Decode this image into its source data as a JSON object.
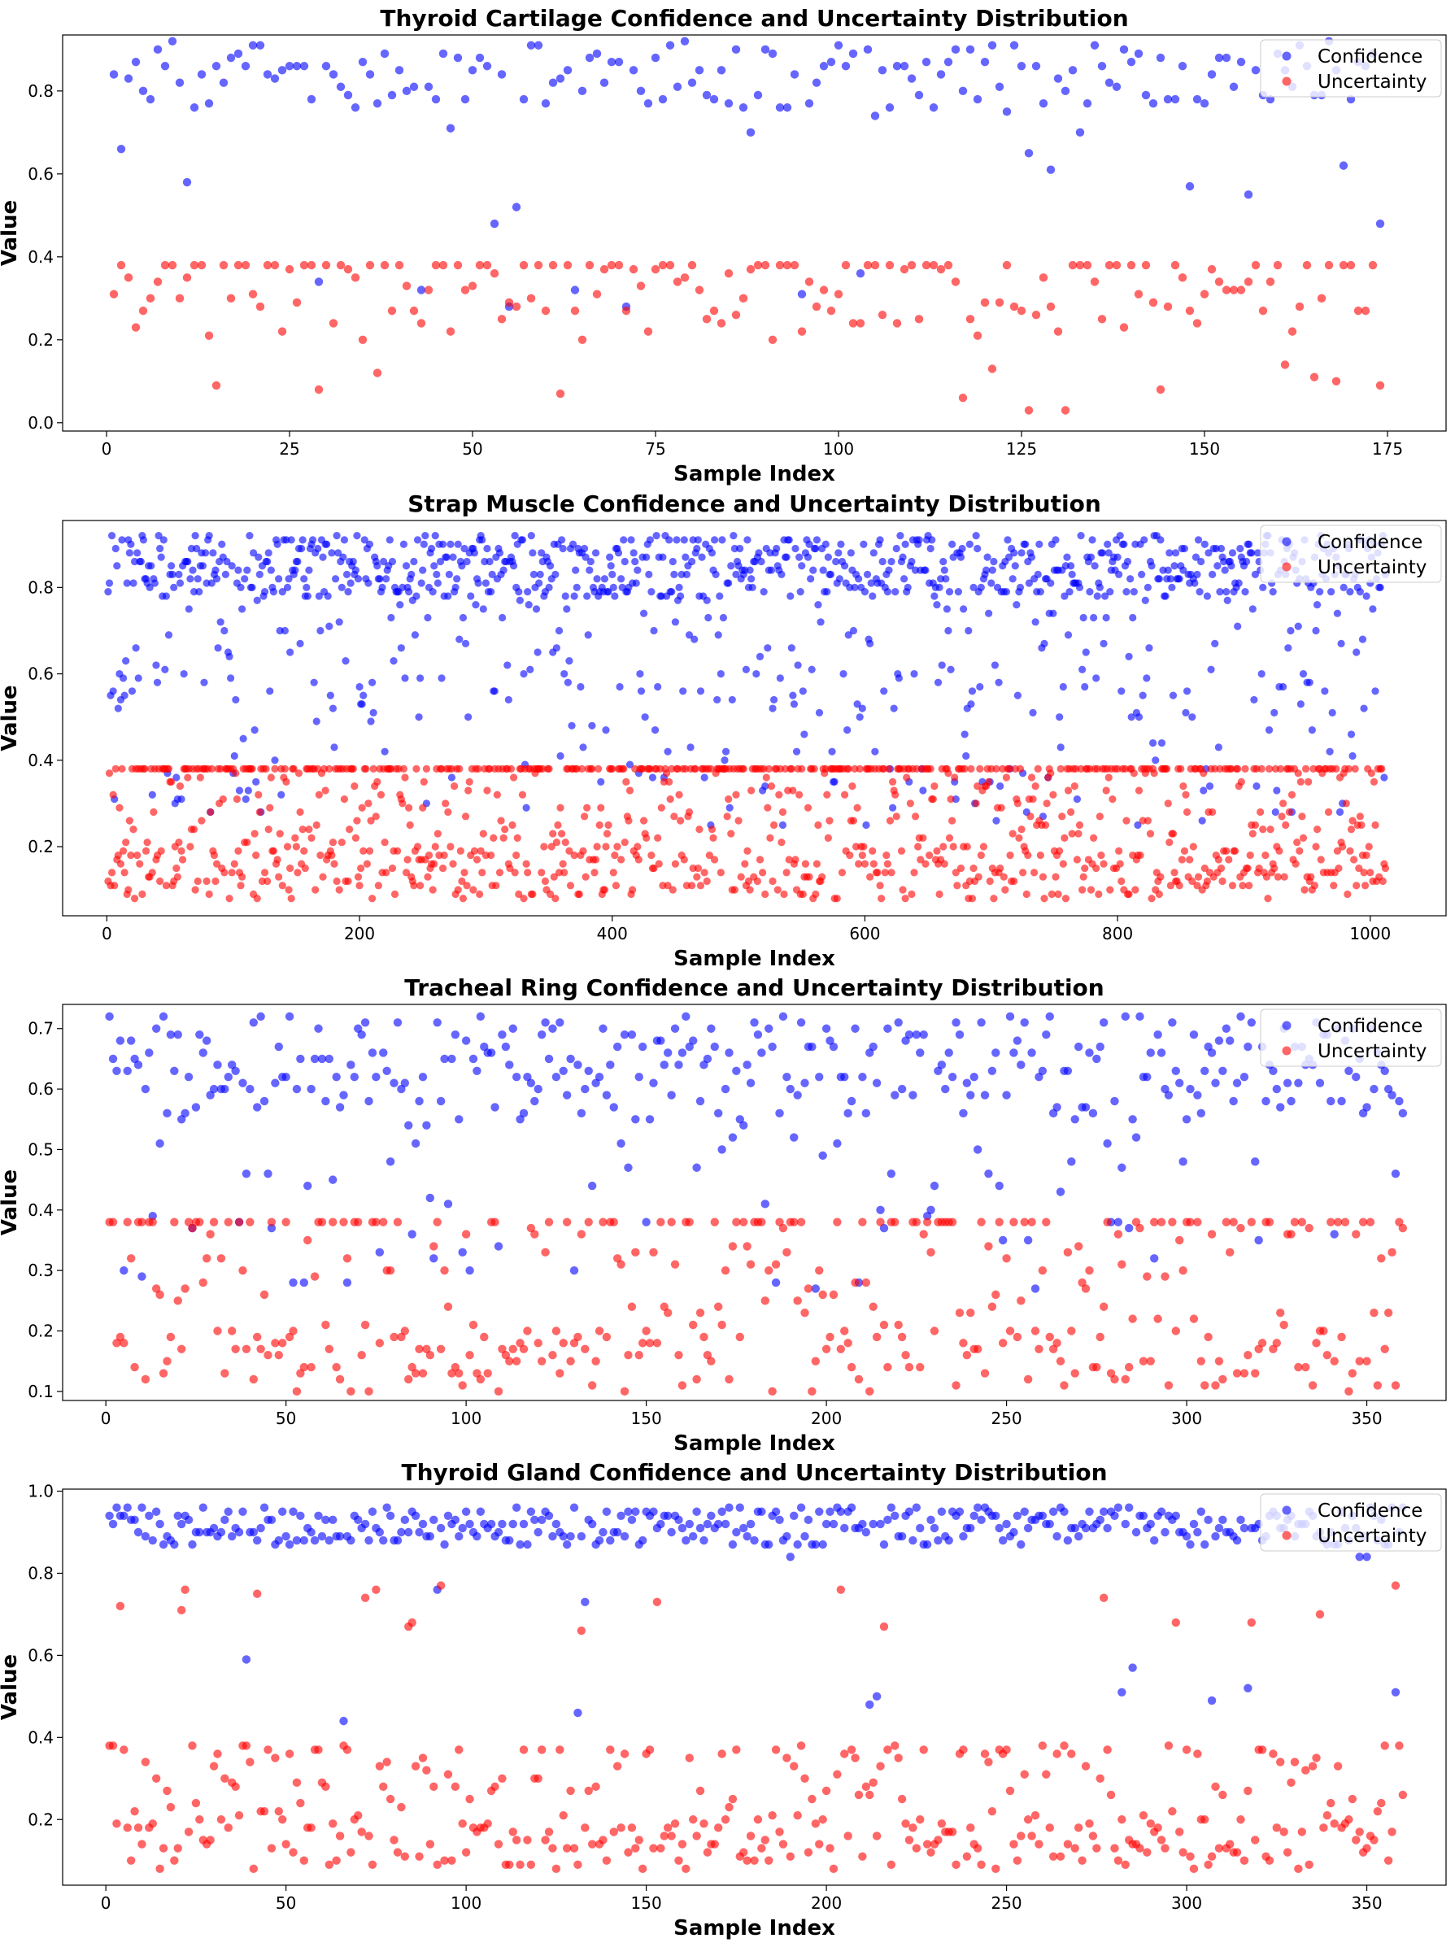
{
  "chart_data": [
    {
      "type": "scatter",
      "title": "Thyroid Cartilage Confidence and Uncertainty Distribution",
      "xlabel": "Sample Index",
      "ylabel": "Value",
      "xlim": [
        -6,
        183
      ],
      "ylim": [
        -0.02,
        0.935
      ],
      "xticks": [
        0,
        25,
        50,
        75,
        100,
        125,
        150,
        175
      ],
      "yticks": [
        0.0,
        0.2,
        0.4,
        0.6,
        0.8
      ],
      "ytick_decimals": 1,
      "legend": "upper-right",
      "n_points": 174,
      "generator": {
        "seed": 11,
        "conf_bands": [
          [
            0.76,
            0.92,
            0.78
          ],
          [
            0.55,
            0.76,
            0.12
          ],
          [
            0.24,
            0.52,
            0.1
          ]
        ],
        "unc_bands": [
          [
            0.38,
            0.38,
            0.3
          ],
          [
            0.2,
            0.38,
            0.62
          ],
          [
            0.0,
            0.2,
            0.08
          ]
        ]
      },
      "series": [
        {
          "name": "Confidence",
          "color": "#0000ff"
        },
        {
          "name": "Uncertainty",
          "color": "#ff0000"
        }
      ]
    },
    {
      "type": "scatter",
      "title": "Strap Muscle Confidence and Uncertainty Distribution",
      "xlabel": "Sample Index",
      "ylabel": "Value",
      "xlim": [
        -35,
        1060
      ],
      "ylim": [
        0.04,
        0.955
      ],
      "xticks": [
        0,
        200,
        400,
        600,
        800,
        1000
      ],
      "yticks": [
        0.2,
        0.4,
        0.6,
        0.8
      ],
      "ytick_decimals": 1,
      "legend": "upper-right",
      "n_points": 1012,
      "generator": {
        "seed": 23,
        "conf_bands": [
          [
            0.78,
            0.92,
            0.7
          ],
          [
            0.55,
            0.78,
            0.18
          ],
          [
            0.25,
            0.55,
            0.12
          ]
        ],
        "unc_bands": [
          [
            0.38,
            0.38,
            0.28
          ],
          [
            0.2,
            0.38,
            0.3
          ],
          [
            0.08,
            0.2,
            0.42
          ]
        ]
      },
      "series": [
        {
          "name": "Confidence",
          "color": "#0000ff"
        },
        {
          "name": "Uncertainty",
          "color": "#ff0000"
        }
      ]
    },
    {
      "type": "scatter",
      "title": "Tracheal Ring Confidence and Uncertainty Distribution",
      "xlabel": "Sample Index",
      "ylabel": "Value",
      "xlim": [
        -12,
        372
      ],
      "ylim": [
        0.085,
        0.74
      ],
      "xticks": [
        0,
        50,
        100,
        150,
        200,
        250,
        300,
        350
      ],
      "yticks": [
        0.1,
        0.2,
        0.3,
        0.4,
        0.5,
        0.6,
        0.7
      ],
      "ytick_decimals": 1,
      "legend": "upper-right",
      "n_points": 360,
      "generator": {
        "seed": 37,
        "conf_bands": [
          [
            0.55,
            0.72,
            0.78
          ],
          [
            0.4,
            0.55,
            0.12
          ],
          [
            0.27,
            0.4,
            0.1
          ]
        ],
        "unc_bands": [
          [
            0.38,
            0.38,
            0.25
          ],
          [
            0.2,
            0.38,
            0.3
          ],
          [
            0.1,
            0.2,
            0.45
          ]
        ]
      },
      "series": [
        {
          "name": "Confidence",
          "color": "#0000ff"
        },
        {
          "name": "Uncertainty",
          "color": "#ff0000"
        }
      ]
    },
    {
      "type": "scatter",
      "title": "Thyroid Gland Confidence and Uncertainty Distribution",
      "xlabel": "Sample Index",
      "ylabel": "Value",
      "xlim": [
        -12,
        372
      ],
      "ylim": [
        0.04,
        1.005
      ],
      "xticks": [
        0,
        50,
        100,
        150,
        200,
        250,
        300,
        350
      ],
      "yticks": [
        0.2,
        0.4,
        0.6,
        0.8,
        1.0
      ],
      "ytick_decimals": 1,
      "legend": "upper-right",
      "n_points": 360,
      "generator": {
        "seed": 53,
        "conf_bands": [
          [
            0.87,
            0.96,
            0.96
          ],
          [
            0.7,
            0.87,
            0.02
          ],
          [
            0.25,
            0.7,
            0.02
          ]
        ],
        "unc_bands": [
          [
            0.36,
            0.38,
            0.15
          ],
          [
            0.2,
            0.36,
            0.25
          ],
          [
            0.08,
            0.2,
            0.56
          ],
          [
            0.66,
            0.77,
            0.04
          ]
        ]
      },
      "series": [
        {
          "name": "Confidence",
          "color": "#0000ff"
        },
        {
          "name": "Uncertainty",
          "color": "#ff0000"
        }
      ]
    }
  ]
}
